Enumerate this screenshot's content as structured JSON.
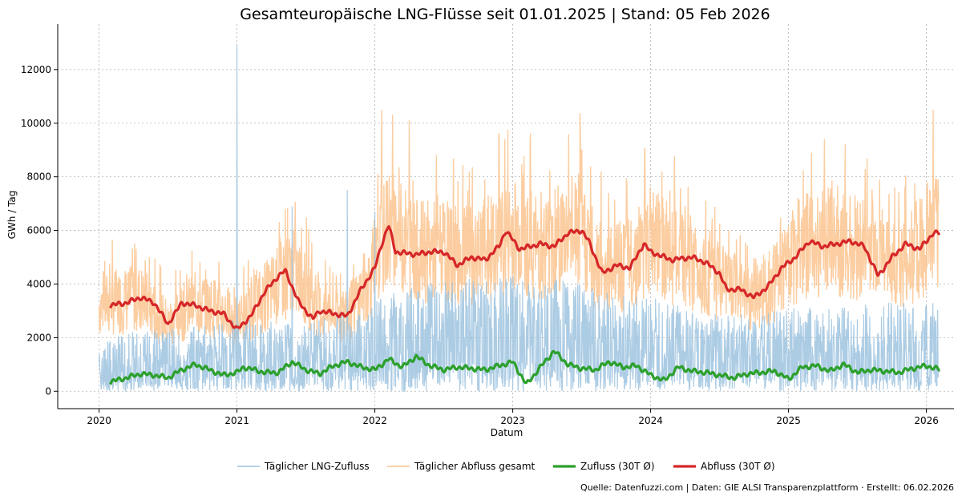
{
  "chart_data": {
    "type": "line",
    "title": "Gesamteuropäische LNG-Flüsse seit 01.01.2025 | Stand: 05 Feb 2026",
    "xlabel": "Datum",
    "ylabel": "GWh / Tag",
    "xlim": [
      2019.7,
      2026.2
    ],
    "ylim": [
      -650,
      13700
    ],
    "x_ticks": [
      2020,
      2021,
      2022,
      2023,
      2024,
      2025,
      2026
    ],
    "x_tick_labels": [
      "2020",
      "2021",
      "2022",
      "2023",
      "2024",
      "2025",
      "2026"
    ],
    "y_ticks": [
      0,
      2000,
      4000,
      6000,
      8000,
      10000,
      12000
    ],
    "y_tick_labels": [
      "0",
      "2000",
      "4000",
      "6000",
      "8000",
      "10000",
      "12000"
    ],
    "grid": true,
    "legend_position": "bottom",
    "series": [
      {
        "name": "Täglicher LNG-Zufluss",
        "color": "#9ec3df",
        "style": "daily-spiky",
        "x": [
          2020.0,
          2020.5,
          2021.0,
          2021.5,
          2022.0,
          2022.5,
          2023.0,
          2023.5,
          2024.0,
          2024.5,
          2025.0,
          2025.5,
          2026.0
        ],
        "values": [
          1500,
          1800,
          2000,
          1900,
          2600,
          3100,
          3300,
          3000,
          2600,
          2100,
          2300,
          2400,
          2500
        ],
        "peaks": [
          [
            2021.0,
            12900
          ],
          [
            2021.8,
            7500
          ],
          [
            2021.4,
            6900
          ],
          [
            2022.0,
            6700
          ]
        ]
      },
      {
        "name": "Täglicher Abfluss gesamt",
        "color": "#fcc48f",
        "style": "daily-band",
        "x": [
          2020.0,
          2020.1,
          2020.3,
          2020.5,
          2020.7,
          2020.9,
          2021.0,
          2021.2,
          2021.4,
          2021.6,
          2021.8,
          2022.0,
          2022.1,
          2022.3,
          2022.5,
          2022.7,
          2022.9,
          2023.0,
          2023.2,
          2023.4,
          2023.5,
          2023.6,
          2023.8,
          2024.0,
          2024.2,
          2024.4,
          2024.6,
          2024.7,
          2024.9,
          2025.0,
          2025.2,
          2025.4,
          2025.6,
          2025.8,
          2026.0,
          2026.1
        ],
        "values": [
          3200,
          3300,
          3500,
          2500,
          3300,
          3000,
          2500,
          3500,
          4500,
          3000,
          2800,
          4500,
          6200,
          5200,
          5200,
          5000,
          5200,
          6000,
          5300,
          5900,
          6000,
          4800,
          4600,
          5600,
          5000,
          4500,
          3700,
          3500,
          4000,
          5000,
          5600,
          5500,
          5300,
          4500,
          5600,
          6000
        ],
        "peaks": [
          [
            2022.05,
            10500
          ],
          [
            2022.25,
            10100
          ],
          [
            2022.9,
            9600
          ],
          [
            2023.5,
            9000
          ],
          [
            2026.05,
            10500
          ]
        ]
      },
      {
        "name": "Zufluss (30T Ø)",
        "color": "#2ca02c",
        "style": "smoothed",
        "x": [
          2020.08,
          2020.2,
          2020.3,
          2020.4,
          2020.5,
          2020.6,
          2020.7,
          2020.8,
          2020.9,
          2021.0,
          2021.05,
          2021.2,
          2021.3,
          2021.4,
          2021.5,
          2021.6,
          2021.7,
          2021.8,
          2021.9,
          2022.0,
          2022.1,
          2022.2,
          2022.3,
          2022.4,
          2022.5,
          2022.6,
          2022.7,
          2022.8,
          2022.9,
          2023.0,
          2023.1,
          2023.2,
          2023.3,
          2023.4,
          2023.5,
          2023.6,
          2023.7,
          2023.8,
          2023.9,
          2024.0,
          2024.1,
          2024.2,
          2024.3,
          2024.4,
          2024.5,
          2024.6,
          2024.7,
          2024.8,
          2024.9,
          2025.0,
          2025.1,
          2025.2,
          2025.3,
          2025.4,
          2025.5,
          2025.6,
          2025.7,
          2025.8,
          2025.9,
          2026.0,
          2026.1
        ],
        "values": [
          350,
          500,
          650,
          600,
          500,
          800,
          1000,
          800,
          600,
          700,
          900,
          700,
          700,
          1100,
          800,
          650,
          950,
          1100,
          900,
          800,
          1200,
          900,
          1300,
          950,
          800,
          900,
          850,
          800,
          950,
          1100,
          250,
          900,
          1500,
          1000,
          850,
          800,
          1100,
          900,
          950,
          600,
          400,
          900,
          750,
          700,
          600,
          500,
          650,
          700,
          750,
          450,
          900,
          950,
          750,
          1000,
          700,
          800,
          750,
          700,
          850,
          950,
          800
        ]
      },
      {
        "name": "Abfluss (30T Ø)",
        "color": "#d62728",
        "style": "smoothed",
        "x": [
          2020.08,
          2020.2,
          2020.3,
          2020.4,
          2020.5,
          2020.6,
          2020.7,
          2020.8,
          2020.9,
          2021.0,
          2021.1,
          2021.2,
          2021.3,
          2021.35,
          2021.45,
          2021.55,
          2021.6,
          2021.7,
          2021.8,
          2021.9,
          2022.0,
          2022.05,
          2022.1,
          2022.15,
          2022.3,
          2022.4,
          2022.5,
          2022.6,
          2022.7,
          2022.8,
          2022.9,
          2022.95,
          2023.05,
          2023.2,
          2023.3,
          2023.4,
          2023.5,
          2023.55,
          2023.65,
          2023.75,
          2023.85,
          2023.95,
          2024.0,
          2024.15,
          2024.3,
          2024.4,
          2024.5,
          2024.55,
          2024.65,
          2024.75,
          2024.85,
          2024.95,
          2025.05,
          2025.15,
          2025.25,
          2025.35,
          2025.45,
          2025.55,
          2025.65,
          2025.75,
          2025.85,
          2025.95,
          2026.05,
          2026.1
        ],
        "values": [
          3200,
          3300,
          3500,
          3300,
          2500,
          3300,
          3200,
          3000,
          2900,
          2300,
          2800,
          3700,
          4300,
          4500,
          3300,
          2700,
          3000,
          2900,
          2800,
          3800,
          4600,
          5500,
          6200,
          5200,
          5100,
          5200,
          5200,
          4700,
          5000,
          4900,
          5400,
          6000,
          5300,
          5500,
          5400,
          5900,
          6000,
          5600,
          4400,
          4700,
          4600,
          5500,
          5200,
          4900,
          5000,
          4800,
          4400,
          3800,
          3800,
          3500,
          3900,
          4600,
          5000,
          5600,
          5400,
          5500,
          5600,
          5400,
          4300,
          5000,
          5500,
          5300,
          5900,
          5900
        ]
      }
    ]
  },
  "footer": {
    "source": "Quelle: Datenfuzzi.com | Daten: GIE ALSI Transparenzplattform · Erstellt: 06.02.2026"
  }
}
